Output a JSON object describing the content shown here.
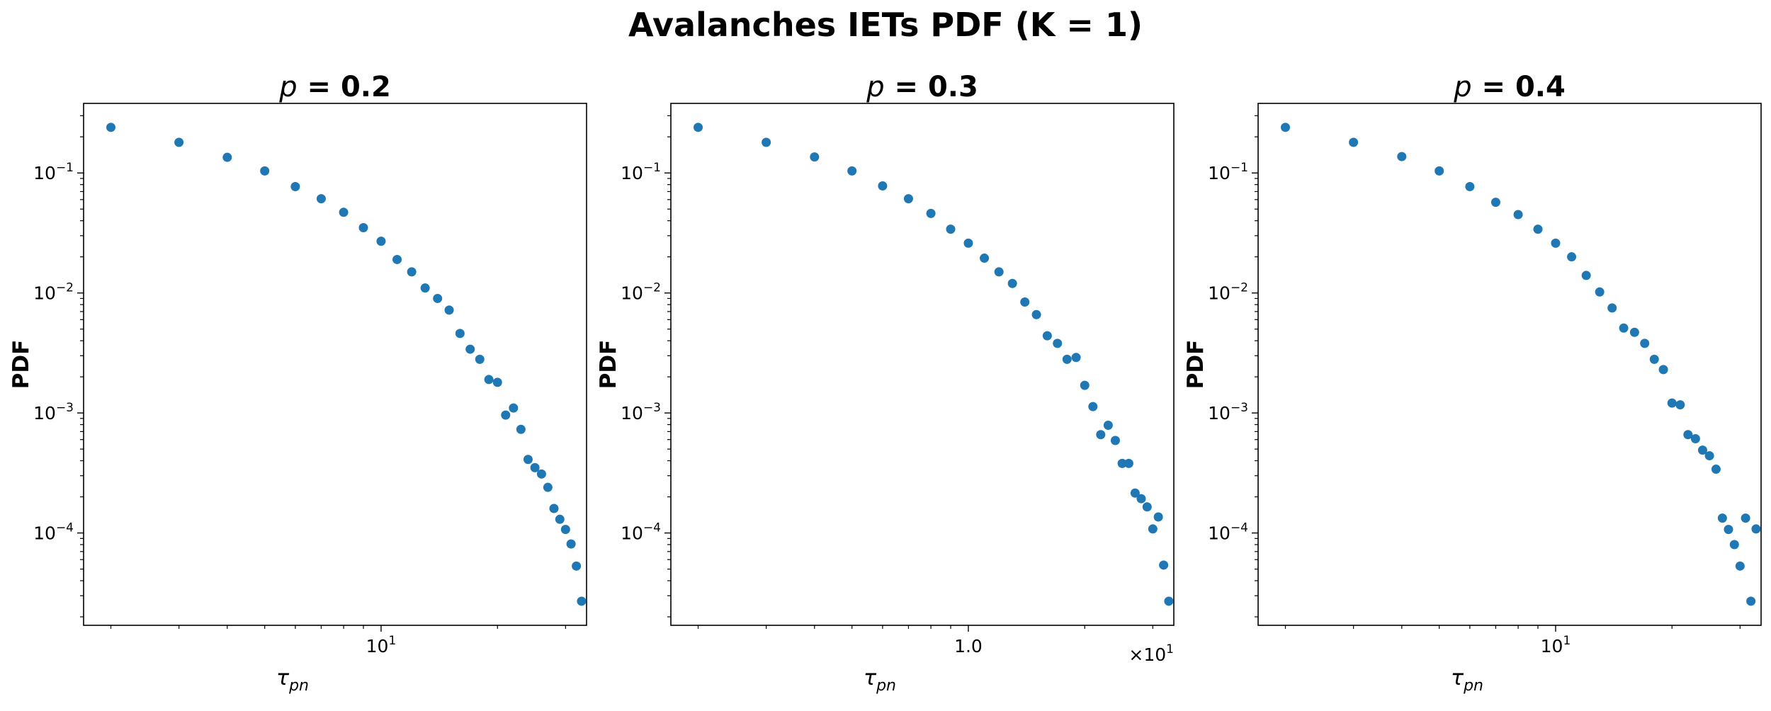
{
  "figure": {
    "suptitle": "Avalanches IETs PDF (K = 1)"
  },
  "chart_data": [
    {
      "type": "scatter",
      "title_var": "p",
      "title_value": " = 0.2",
      "xlabel_main": "τ",
      "xlabel_sub": "pn",
      "ylabel": "PDF",
      "xscale": "log",
      "yscale": "log",
      "xlim": [
        1.7,
        34
      ],
      "ylim": [
        1.7e-05,
        0.38
      ],
      "x_ticks": [
        {
          "value": 10,
          "base": "10",
          "exp": "1"
        }
      ],
      "y_ticks": [
        {
          "value": 0.1,
          "base": "10",
          "exp": "−1"
        },
        {
          "value": 0.01,
          "base": "10",
          "exp": "−2"
        },
        {
          "value": 0.001,
          "base": "10",
          "exp": "−3"
        },
        {
          "value": 0.0001,
          "base": "10",
          "exp": "−4"
        }
      ],
      "offset_text": "",
      "color": "#1f77b4",
      "x": [
        2,
        3,
        4,
        5,
        6,
        7,
        8,
        9,
        10,
        11,
        12,
        13,
        14,
        15,
        16,
        17,
        18,
        19,
        20,
        21,
        22,
        23,
        24,
        25,
        26,
        27,
        28,
        29,
        30,
        31,
        32,
        33
      ],
      "y": [
        0.24,
        0.18,
        0.135,
        0.104,
        0.077,
        0.061,
        0.047,
        0.035,
        0.027,
        0.019,
        0.015,
        0.011,
        0.009,
        0.0072,
        0.0046,
        0.0034,
        0.0028,
        0.0019,
        0.0018,
        0.00096,
        0.0011,
        0.00073,
        0.00041,
        0.00035,
        0.00031,
        0.00024,
        0.00016,
        0.00013,
        0.000107,
        8.1e-05,
        5.3e-05,
        2.7e-05
      ]
    },
    {
      "type": "scatter",
      "title_var": "p",
      "title_value": " = 0.3",
      "xlabel_main": "τ",
      "xlabel_sub": "pn",
      "ylabel": "PDF",
      "xscale": "log",
      "yscale": "log",
      "xlim": [
        1.7,
        34
      ],
      "ylim": [
        1.7e-05,
        0.38
      ],
      "x_ticks": [
        {
          "value": 10,
          "label": "1.0"
        }
      ],
      "y_ticks": [
        {
          "value": 0.1,
          "base": "10",
          "exp": "−1"
        },
        {
          "value": 0.01,
          "base": "10",
          "exp": "−2"
        },
        {
          "value": 0.001,
          "base": "10",
          "exp": "−3"
        },
        {
          "value": 0.0001,
          "base": "10",
          "exp": "−4"
        }
      ],
      "offset_text": "×10",
      "offset_exp": "1",
      "color": "#1f77b4",
      "x": [
        2,
        3,
        4,
        5,
        6,
        7,
        8,
        9,
        10,
        11,
        12,
        13,
        14,
        15,
        16,
        17,
        18,
        19,
        20,
        21,
        22,
        23,
        24,
        25,
        26,
        27,
        28,
        29,
        30,
        31,
        32,
        33
      ],
      "y": [
        0.24,
        0.18,
        0.136,
        0.104,
        0.078,
        0.061,
        0.046,
        0.034,
        0.026,
        0.0195,
        0.015,
        0.012,
        0.0084,
        0.0066,
        0.0044,
        0.0038,
        0.0028,
        0.0029,
        0.0017,
        0.00113,
        0.00066,
        0.00079,
        0.00059,
        0.00038,
        0.00038,
        0.000215,
        0.000193,
        0.000165,
        0.000108,
        0.000136,
        5.4e-05,
        2.7e-05
      ]
    },
    {
      "type": "scatter",
      "title_var": "p",
      "title_value": " = 0.4",
      "xlabel_main": "τ",
      "xlabel_sub": "pn",
      "ylabel": "PDF",
      "xscale": "log",
      "yscale": "log",
      "xlim": [
        1.7,
        34
      ],
      "ylim": [
        1.7e-05,
        0.38
      ],
      "x_ticks": [
        {
          "value": 10,
          "base": "10",
          "exp": "1"
        }
      ],
      "y_ticks": [
        {
          "value": 0.1,
          "base": "10",
          "exp": "−1"
        },
        {
          "value": 0.01,
          "base": "10",
          "exp": "−2"
        },
        {
          "value": 0.001,
          "base": "10",
          "exp": "−3"
        },
        {
          "value": 0.0001,
          "base": "10",
          "exp": "−4"
        }
      ],
      "offset_text": "",
      "color": "#1f77b4",
      "x": [
        2,
        3,
        4,
        5,
        6,
        7,
        8,
        9,
        10,
        11,
        12,
        13,
        14,
        15,
        16,
        17,
        18,
        19,
        20,
        21,
        22,
        23,
        24,
        25,
        26,
        27,
        28,
        29,
        30,
        31,
        32,
        33
      ],
      "y": [
        0.24,
        0.18,
        0.137,
        0.104,
        0.077,
        0.057,
        0.045,
        0.034,
        0.026,
        0.02,
        0.014,
        0.0102,
        0.0075,
        0.0051,
        0.0047,
        0.0038,
        0.0028,
        0.0023,
        0.00121,
        0.00117,
        0.00066,
        0.00061,
        0.00049,
        0.00044,
        0.00034,
        0.000133,
        0.000107,
        8e-05,
        5.3e-05,
        0.000133,
        2.7e-05,
        0.000108
      ]
    }
  ]
}
